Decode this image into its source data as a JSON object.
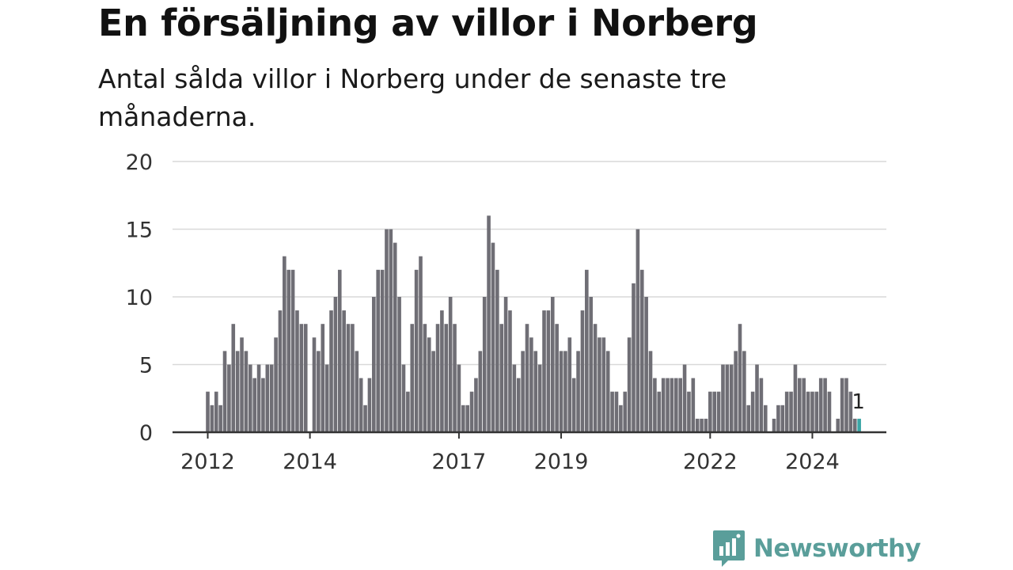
{
  "title": "En försäljning av villor i Norberg",
  "subtitle": "Antal sålda villor i Norberg under de senaste tre månaderna.",
  "brand": {
    "name": "Newsworthy",
    "color": "#5a9e9a",
    "icon": "newsworthy-logo-icon"
  },
  "chart_data": {
    "type": "bar",
    "title": "En försäljning av villor i Norberg",
    "subtitle": "Antal sålda villor i Norberg under de senaste tre månaderna.",
    "xlabel": "",
    "ylabel": "",
    "ylim": [
      0,
      20
    ],
    "yticks": [
      0,
      5,
      10,
      15,
      20
    ],
    "xticks": [
      "2012",
      "2014",
      "2017",
      "2019",
      "2022",
      "2024"
    ],
    "grid": true,
    "legend": "none",
    "bar_color": "#6f6e75",
    "highlight_color": "#3aa6a6",
    "highlight_label": "1",
    "series": [
      {
        "values": [
          3,
          2,
          3,
          2,
          6,
          5,
          8,
          6,
          7,
          6,
          5,
          4,
          5,
          4,
          5,
          5,
          7,
          9,
          13,
          12,
          12,
          9,
          8,
          8,
          0,
          7,
          6,
          8,
          5,
          9,
          10,
          12,
          9,
          8,
          8,
          6,
          4,
          2,
          4,
          10,
          12,
          12,
          15,
          15,
          14,
          10,
          5,
          3,
          8,
          12,
          13,
          8,
          7,
          6,
          8,
          9,
          8,
          10,
          8,
          5,
          2,
          2,
          3,
          4,
          6,
          10,
          16,
          14,
          12,
          8,
          10,
          9,
          5,
          4,
          6,
          8,
          7,
          6,
          5,
          9,
          9,
          10,
          8,
          6,
          6,
          7,
          4,
          6,
          9,
          12,
          10,
          8,
          7,
          7,
          6,
          3,
          3,
          2,
          3,
          7,
          11,
          15,
          12,
          10,
          6,
          4,
          3,
          4,
          4,
          4,
          4,
          4,
          5,
          3,
          4,
          1,
          1,
          1,
          3,
          3,
          3,
          5,
          5,
          5,
          6,
          8,
          6,
          2,
          3,
          5,
          4,
          2,
          0,
          1,
          2,
          2,
          3,
          3,
          5,
          4,
          4,
          3,
          3,
          3,
          4,
          4,
          3,
          0,
          1,
          4,
          4,
          3,
          1,
          1
        ]
      }
    ]
  }
}
